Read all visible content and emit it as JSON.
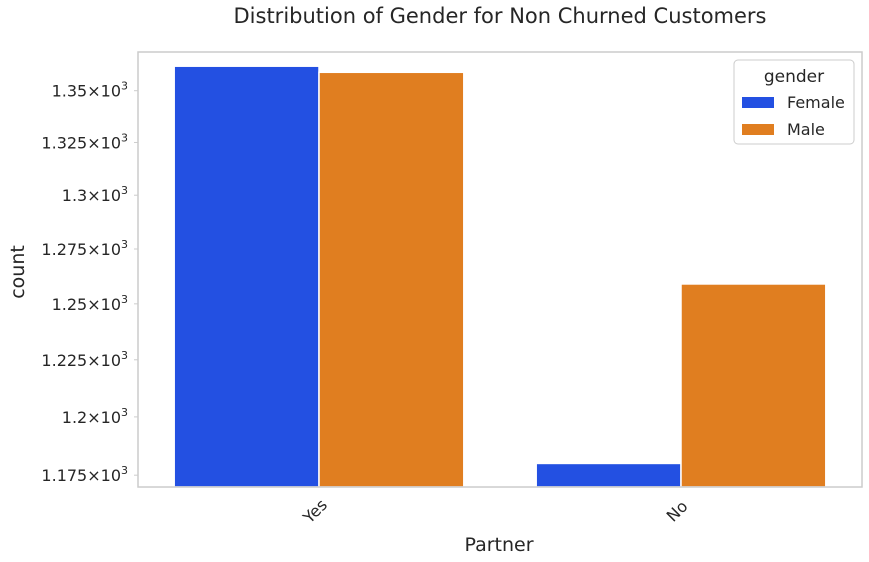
{
  "chart_data": {
    "type": "bar",
    "title": "Distribution of Gender for Non Churned Customers",
    "xlabel": "Partner",
    "ylabel": "count",
    "categories": [
      "Yes",
      "No"
    ],
    "series": [
      {
        "name": "Female",
        "values": [
          1362,
          1180
        ],
        "color": "#2350e2"
      },
      {
        "name": "Male",
        "values": [
          1359,
          1259
        ],
        "color": "#e07e20"
      }
    ],
    "ylim": [
      1170,
      1369
    ],
    "yscale": "log",
    "yticks": [
      1175,
      1200,
      1225,
      1250,
      1275,
      1300,
      1325,
      1350
    ],
    "ytick_labels": [
      {
        "mantissa": "1.175",
        "exp": "3"
      },
      {
        "mantissa": "1.2",
        "exp": "3"
      },
      {
        "mantissa": "1.225",
        "exp": "3"
      },
      {
        "mantissa": "1.25",
        "exp": "3"
      },
      {
        "mantissa": "1.275",
        "exp": "3"
      },
      {
        "mantissa": "1.3",
        "exp": "3"
      },
      {
        "mantissa": "1.325",
        "exp": "3"
      },
      {
        "mantissa": "1.35",
        "exp": "3"
      }
    ],
    "legend": {
      "title": "gender",
      "position": "top-right"
    },
    "grid": false,
    "xtick_rotation": "45 degrees"
  }
}
